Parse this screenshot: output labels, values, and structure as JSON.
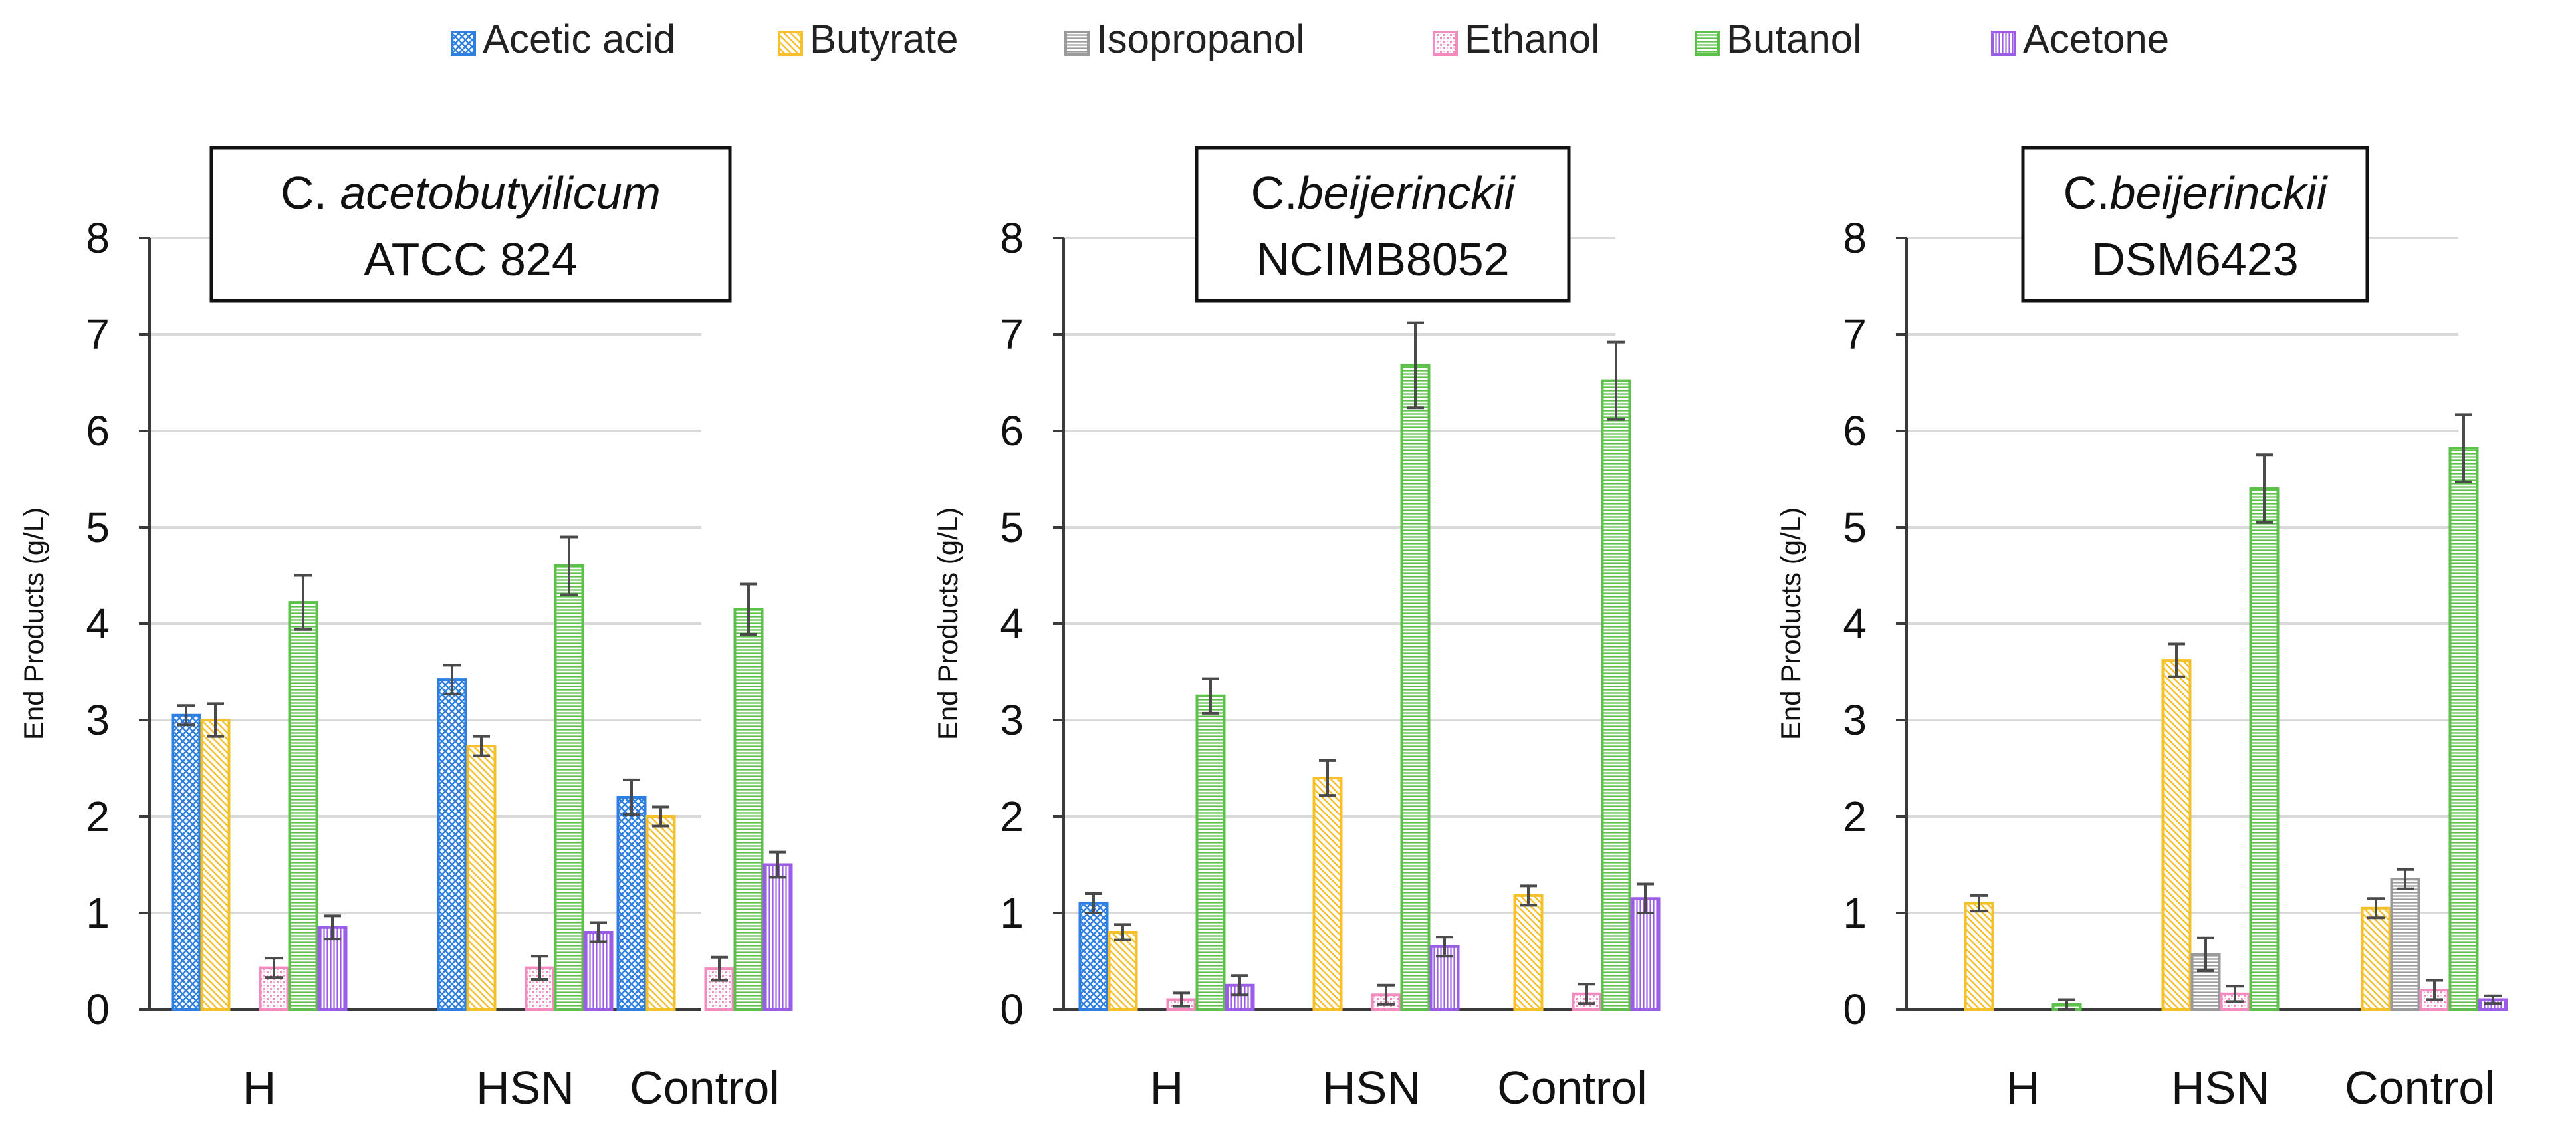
{
  "legend": [
    {
      "name": "Acetic acid",
      "color": "#2f7fe0",
      "pattern": "crosshatch"
    },
    {
      "name": "Butyrate",
      "color": "#f5c02a",
      "pattern": "diag"
    },
    {
      "name": "Isopropanol",
      "color": "#9a9a9a",
      "pattern": "hlines"
    },
    {
      "name": "Ethanol",
      "color": "#f28cbf",
      "pattern": "dots"
    },
    {
      "name": "Butanol",
      "color": "#5cc04a",
      "pattern": "hlines"
    },
    {
      "name": "Acetone",
      "color": "#9b5de5",
      "pattern": "vlines"
    }
  ],
  "chart_data": [
    {
      "type": "bar",
      "title_parts": [
        {
          "text": "C. ",
          "italic": false
        },
        {
          "text": "acetobutyilicum",
          "italic": true
        }
      ],
      "title_line2": "ATCC 824",
      "ylabel": "End Products (g/L)",
      "ylim": [
        0,
        8
      ],
      "yticks": [
        "0",
        "1",
        "2",
        "3",
        "4",
        "5",
        "6",
        "7",
        "8"
      ],
      "grid": true,
      "categories": [
        "H",
        "HSN",
        "Control"
      ],
      "series": [
        {
          "name": "Acetic acid",
          "values": [
            3.05,
            3.42,
            2.2
          ],
          "errors": [
            0.1,
            0.15,
            0.18
          ]
        },
        {
          "name": "Butyrate",
          "values": [
            3.0,
            2.73,
            2.0
          ],
          "errors": [
            0.17,
            0.1,
            0.1
          ]
        },
        {
          "name": "Isopropanol",
          "values": [
            0,
            0,
            0
          ],
          "errors": [
            0,
            0,
            0
          ]
        },
        {
          "name": "Ethanol",
          "values": [
            0.43,
            0.43,
            0.42
          ],
          "errors": [
            0.1,
            0.12,
            0.12
          ]
        },
        {
          "name": "Butanol",
          "values": [
            4.22,
            4.6,
            4.15
          ],
          "errors": [
            0.28,
            0.3,
            0.26
          ]
        },
        {
          "name": "Acetone",
          "values": [
            0.85,
            0.8,
            1.5
          ],
          "errors": [
            0.12,
            0.1,
            0.13
          ]
        }
      ]
    },
    {
      "type": "bar",
      "title_parts": [
        {
          "text": "C.",
          "italic": false
        },
        {
          "text": "beijerinckii",
          "italic": true
        }
      ],
      "title_line2": "NCIMB8052",
      "ylabel": "End Products (g/L)",
      "ylim": [
        0,
        8
      ],
      "yticks": [
        "0",
        "1",
        "2",
        "3",
        "4",
        "5",
        "6",
        "7",
        "8"
      ],
      "grid": true,
      "categories": [
        "H",
        "HSN",
        "Control"
      ],
      "series": [
        {
          "name": "Acetic acid",
          "values": [
            1.1,
            0,
            0
          ],
          "errors": [
            0.1,
            0,
            0
          ]
        },
        {
          "name": "Butyrate",
          "values": [
            0.8,
            2.4,
            1.18
          ],
          "errors": [
            0.08,
            0.18,
            0.1
          ]
        },
        {
          "name": "Isopropanol",
          "values": [
            0,
            0,
            0
          ],
          "errors": [
            0,
            0,
            0
          ]
        },
        {
          "name": "Ethanol",
          "values": [
            0.1,
            0.15,
            0.16
          ],
          "errors": [
            0.07,
            0.1,
            0.1
          ]
        },
        {
          "name": "Butanol",
          "values": [
            3.25,
            6.68,
            6.52
          ],
          "errors": [
            0.18,
            0.44,
            0.4
          ]
        },
        {
          "name": "Acetone",
          "values": [
            0.25,
            0.65,
            1.15
          ],
          "errors": [
            0.1,
            0.1,
            0.15
          ]
        }
      ]
    },
    {
      "type": "bar",
      "title_parts": [
        {
          "text": "C.",
          "italic": false
        },
        {
          "text": "beijerinckii",
          "italic": true
        }
      ],
      "title_line2": "DSM6423",
      "ylabel": "End Products (g/L)",
      "ylim": [
        0,
        8
      ],
      "yticks": [
        "0",
        "1",
        "2",
        "3",
        "4",
        "5",
        "6",
        "7",
        "8"
      ],
      "grid": true,
      "categories": [
        "H",
        "HSN",
        "Control"
      ],
      "series": [
        {
          "name": "Acetic acid",
          "values": [
            0,
            0,
            0
          ],
          "errors": [
            0,
            0,
            0
          ]
        },
        {
          "name": "Butyrate",
          "values": [
            1.1,
            3.62,
            1.05
          ],
          "errors": [
            0.08,
            0.17,
            0.1
          ]
        },
        {
          "name": "Isopropanol",
          "values": [
            0,
            0.57,
            1.35
          ],
          "errors": [
            0,
            0.17,
            0.1
          ]
        },
        {
          "name": "Ethanol",
          "values": [
            0,
            0.16,
            0.2
          ],
          "errors": [
            0,
            0.08,
            0.1
          ]
        },
        {
          "name": "Butanol",
          "values": [
            0.05,
            5.4,
            5.82
          ],
          "errors": [
            0.05,
            0.35,
            0.35
          ]
        },
        {
          "name": "Acetone",
          "values": [
            0,
            0,
            0.1
          ],
          "errors": [
            0,
            0,
            0.04
          ]
        }
      ]
    }
  ]
}
